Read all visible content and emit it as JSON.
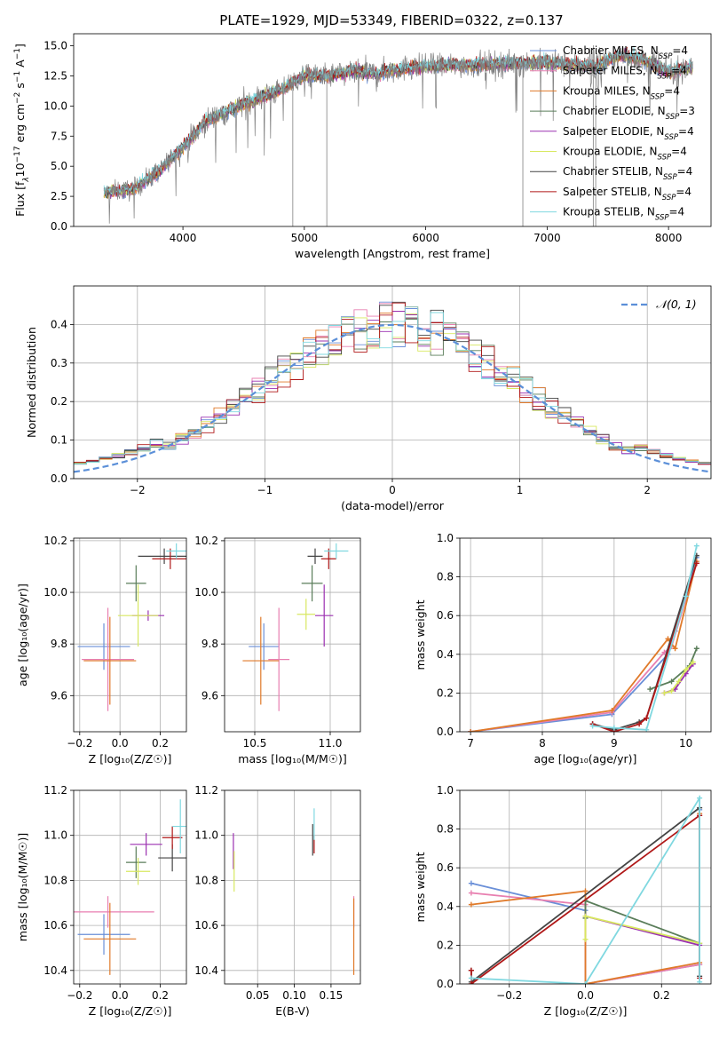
{
  "figure": {
    "title": "PLATE=1929, MJD=53349, FIBERID=0322, z=0.137"
  },
  "colors": {
    "Chabrier MILES": "#6a8fd8",
    "Salpeter MILES": "#e87fb0",
    "Kroupa MILES": "#e07a2a",
    "Chabrier ELODIE": "#5a7d5a",
    "Salpeter ELODIE": "#9b30b0",
    "Kroupa ELODIE": "#d8e860",
    "Chabrier STELIB": "#444444",
    "Salpeter STELIB": "#b01818",
    "Kroupa STELIB": "#80d8e0",
    "data": "#808080",
    "normal": "#5b8fd8",
    "grid": "#b0b0b0"
  },
  "chart_data": [
    {
      "id": "spectrum",
      "type": "line",
      "title": "PLATE=1929, MJD=53349, FIBERID=0322, z=0.137",
      "xlabel": "wavelength [Angstrom, rest frame]",
      "ylabel_parts": [
        "Flux [f",
        "λ",
        "10",
        "−17",
        " erg cm",
        "−2",
        " s",
        "−1",
        " A",
        "−1",
        "]"
      ],
      "xlim": [
        3100,
        8350
      ],
      "ylim": [
        0,
        16
      ],
      "xticks": [
        4000,
        5000,
        6000,
        7000,
        8000
      ],
      "xtick_labels": [
        "4000",
        "5000",
        "6000",
        "7000",
        "8000"
      ],
      "yticks": [
        0.0,
        2.5,
        5.0,
        7.5,
        10.0,
        12.5,
        15.0
      ],
      "ytick_labels": [
        "0.0",
        "2.5",
        "5.0",
        "7.5",
        "10.0",
        "12.5",
        "15.0"
      ],
      "grid": false,
      "legend_position": "right",
      "data_range": [
        3350,
        8200
      ],
      "continuum_x": [
        3350,
        3600,
        3800,
        4000,
        4200,
        4500,
        4800,
        5000,
        5200,
        5400,
        5600,
        5800,
        6000,
        6300,
        6600,
        7000,
        7400,
        7600,
        7800,
        8000,
        8200
      ],
      "continuum_y": [
        2.8,
        3.1,
        4.6,
        6.6,
        8.8,
        10.2,
        11.3,
        12.5,
        12.5,
        12.9,
        12.7,
        13.1,
        13.3,
        13.4,
        13.5,
        13.6,
        13.3,
        14.2,
        13.8,
        12.8,
        13.3
      ],
      "legend": [
        {
          "name": "Chabrier MILES",
          "n": "4"
        },
        {
          "name": "Salpeter MILES",
          "n": "4"
        },
        {
          "name": "Kroupa MILES",
          "n": "4"
        },
        {
          "name": "Chabrier ELODIE",
          "n": "3"
        },
        {
          "name": "Salpeter ELODIE",
          "n": "4"
        },
        {
          "name": "Kroupa ELODIE",
          "n": "4"
        },
        {
          "name": "Chabrier STELIB",
          "n": "4"
        },
        {
          "name": "Salpeter STELIB",
          "n": "4"
        },
        {
          "name": "Kroupa STELIB",
          "n": "4"
        }
      ],
      "legend_n_label": "N",
      "legend_n_sub": "SSP"
    },
    {
      "id": "residuals",
      "type": "line",
      "xlabel": "(data-model)/error",
      "ylabel": "Normed distribution",
      "xlim": [
        -2.5,
        2.5
      ],
      "ylim": [
        0,
        0.5
      ],
      "xticks": [
        -2,
        -1,
        0,
        1,
        2
      ],
      "xtick_labels": [
        "−2",
        "−1",
        "0",
        "1",
        "2"
      ],
      "yticks": [
        0.0,
        0.1,
        0.2,
        0.3,
        0.4
      ],
      "ytick_labels": [
        "0.0",
        "0.1",
        "0.2",
        "0.3",
        "0.4"
      ],
      "grid": true,
      "legend_position": "top-right",
      "legend_label": "𝒩(0, 1)",
      "bin_width": 0.1,
      "hist_start": -2.5
    },
    {
      "id": "z_age",
      "type": "scatter",
      "xlabel": "Z [log₁₀(Z/Z☉)]",
      "ylabel": "age  [log₁₀(age/yr)]",
      "xlim": [
        -0.23,
        0.33
      ],
      "ylim": [
        9.46,
        10.21
      ],
      "xticks": [
        -0.2,
        0.0,
        0.2
      ],
      "xtick_labels": [
        "−0.2",
        "0.0",
        "0.2"
      ],
      "yticks": [
        9.6,
        9.8,
        10.0,
        10.2
      ],
      "ytick_labels": [
        "9.6",
        "9.8",
        "10.0",
        "10.2"
      ],
      "grid": true,
      "points": [
        {
          "model": "Chabrier MILES",
          "x": -0.08,
          "y": 9.79,
          "xerr": 0.13,
          "yerr": 0.09
        },
        {
          "model": "Salpeter MILES",
          "x": -0.06,
          "y": 9.74,
          "xerr": 0.13,
          "yerr": 0.2
        },
        {
          "model": "Kroupa MILES",
          "x": -0.05,
          "y": 9.735,
          "xerr": 0.13,
          "yerr": 0.17
        },
        {
          "model": "Chabrier ELODIE",
          "x": 0.08,
          "y": 10.035,
          "xerr": 0.05,
          "yerr": 0.07
        },
        {
          "model": "Salpeter ELODIE",
          "x": 0.14,
          "y": 9.91,
          "xerr": 0.08,
          "yerr": 0.02
        },
        {
          "model": "Kroupa ELODIE",
          "x": 0.09,
          "y": 9.91,
          "xerr": 0.1,
          "yerr": 0.12
        },
        {
          "model": "Chabrier STELIB",
          "x": 0.22,
          "y": 10.14,
          "xerr": 0.13,
          "yerr": 0.03
        },
        {
          "model": "Salpeter STELIB",
          "x": 0.25,
          "y": 10.13,
          "xerr": 0.09,
          "yerr": 0.04
        },
        {
          "model": "Kroupa STELIB",
          "x": 0.28,
          "y": 10.16,
          "xerr": 0.05,
          "yerr": 0.03
        }
      ]
    },
    {
      "id": "mass_age",
      "type": "scatter",
      "xlabel": "mass [log₁₀(M/M☉)]",
      "ylabel": "",
      "xlim": [
        10.3,
        11.2
      ],
      "ylim": [
        9.46,
        10.21
      ],
      "xticks": [
        10.5,
        11.0
      ],
      "xtick_labels": [
        "10.5",
        "11.0"
      ],
      "yticks": [
        9.6,
        9.8,
        10.0,
        10.2
      ],
      "ytick_labels": [
        "9.6",
        "9.8",
        "10.0",
        "10.2"
      ],
      "grid": true,
      "points": [
        {
          "model": "Chabrier MILES",
          "x": 10.56,
          "y": 9.79,
          "xerr": 0.1,
          "yerr": 0.09
        },
        {
          "model": "Salpeter MILES",
          "x": 10.66,
          "y": 9.74,
          "xerr": 0.07,
          "yerr": 0.2
        },
        {
          "model": "Kroupa MILES",
          "x": 10.54,
          "y": 9.735,
          "xerr": 0.12,
          "yerr": 0.17
        },
        {
          "model": "Chabrier ELODIE",
          "x": 10.88,
          "y": 10.035,
          "xerr": 0.07,
          "yerr": 0.07
        },
        {
          "model": "Salpeter ELODIE",
          "x": 10.96,
          "y": 9.91,
          "xerr": 0.06,
          "yerr": 0.12
        },
        {
          "model": "Kroupa ELODIE",
          "x": 10.84,
          "y": 9.915,
          "xerr": 0.06,
          "yerr": 0.06
        },
        {
          "model": "Chabrier STELIB",
          "x": 10.9,
          "y": 10.14,
          "xerr": 0.05,
          "yerr": 0.03
        },
        {
          "model": "Salpeter STELIB",
          "x": 10.99,
          "y": 10.13,
          "xerr": 0.05,
          "yerr": 0.04
        },
        {
          "model": "Kroupa STELIB",
          "x": 11.04,
          "y": 10.16,
          "xerr": 0.08,
          "yerr": 0.03
        }
      ]
    },
    {
      "id": "age_weight",
      "type": "line",
      "xlabel": "age  [log₁₀(age/yr)]",
      "ylabel": "mass weight",
      "xlim": [
        6.85,
        10.35
      ],
      "ylim": [
        0,
        1.0
      ],
      "xticks": [
        7,
        8,
        9,
        10
      ],
      "xtick_labels": [
        "7",
        "8",
        "9",
        "10"
      ],
      "yticks": [
        0.0,
        0.2,
        0.4,
        0.6,
        0.8,
        1.0
      ],
      "ytick_labels": [
        "0.0",
        "0.2",
        "0.4",
        "0.6",
        "0.8",
        "1.0"
      ],
      "grid": true,
      "series": [
        {
          "model": "Chabrier MILES",
          "x": [
            7.0,
            8.97,
            9.75,
            9.85,
            10.15
          ],
          "y": [
            0.0,
            0.09,
            0.4,
            0.52,
            0.9
          ]
        },
        {
          "model": "Salpeter MILES",
          "x": [
            7.0,
            8.97,
            9.7,
            9.8,
            10.15
          ],
          "y": [
            0.0,
            0.1,
            0.41,
            0.44,
            0.87
          ]
        },
        {
          "model": "Kroupa MILES",
          "x": [
            7.0,
            8.97,
            9.75,
            9.85,
            10.15
          ],
          "y": [
            0.0,
            0.11,
            0.48,
            0.43,
            0.88
          ]
        },
        {
          "model": "Chabrier ELODIE",
          "x": [
            9.5,
            9.8,
            10.05,
            10.15
          ],
          "y": [
            0.22,
            0.26,
            0.34,
            0.43
          ]
        },
        {
          "model": "Salpeter ELODIE",
          "x": [
            9.7,
            9.85,
            10.0,
            10.1
          ],
          "y": [
            0.2,
            0.22,
            0.3,
            0.35
          ]
        },
        {
          "model": "Kroupa ELODIE",
          "x": [
            9.7,
            9.8,
            9.9,
            10.0,
            10.1
          ],
          "y": [
            0.2,
            0.21,
            0.26,
            0.32,
            0.36
          ]
        },
        {
          "model": "Chabrier STELIB",
          "x": [
            8.7,
            9.0,
            9.35,
            9.45,
            10.15
          ],
          "y": [
            0.04,
            0.01,
            0.05,
            0.07,
            0.91
          ]
        },
        {
          "model": "Salpeter STELIB",
          "x": [
            8.7,
            9.0,
            9.35,
            9.45,
            10.15
          ],
          "y": [
            0.04,
            0.0,
            0.04,
            0.07,
            0.87
          ]
        },
        {
          "model": "Kroupa STELIB",
          "x": [
            8.7,
            9.0,
            9.45,
            10.0,
            10.15
          ],
          "y": [
            0.03,
            0.02,
            0.01,
            0.7,
            0.96
          ]
        }
      ]
    },
    {
      "id": "z_mass",
      "type": "scatter",
      "xlabel": "Z [log₁₀(Z/Z☉)]",
      "ylabel": "mass [log₁₀(M/M☉)]",
      "xlim": [
        -0.23,
        0.33
      ],
      "ylim": [
        10.34,
        11.2
      ],
      "xticks": [
        -0.2,
        0.0,
        0.2
      ],
      "xtick_labels": [
        "−0.2",
        "0.0",
        "0.2"
      ],
      "yticks": [
        10.4,
        10.6,
        10.8,
        11.0,
        11.2
      ],
      "ytick_labels": [
        "10.4",
        "10.6",
        "10.8",
        "11.0",
        "11.2"
      ],
      "grid": true,
      "points": [
        {
          "model": "Chabrier MILES",
          "x": -0.08,
          "y": 10.56,
          "xerr": 0.13,
          "yerr": 0.09
        },
        {
          "model": "Salpeter MILES",
          "x": -0.06,
          "y": 10.66,
          "xerr": 0.23,
          "yerr": 0.07
        },
        {
          "model": "Kroupa MILES",
          "x": -0.05,
          "y": 10.54,
          "xerr": 0.13,
          "yerr": 0.16
        },
        {
          "model": "Chabrier ELODIE",
          "x": 0.08,
          "y": 10.88,
          "xerr": 0.05,
          "yerr": 0.07
        },
        {
          "model": "Salpeter ELODIE",
          "x": 0.13,
          "y": 10.96,
          "xerr": 0.08,
          "yerr": 0.05
        },
        {
          "model": "Kroupa ELODIE",
          "x": 0.09,
          "y": 10.84,
          "xerr": 0.06,
          "yerr": 0.06
        },
        {
          "model": "Chabrier STELIB",
          "x": 0.26,
          "y": 10.9,
          "xerr": 0.07,
          "yerr": 0.06
        },
        {
          "model": "Salpeter STELIB",
          "x": 0.26,
          "y": 10.99,
          "xerr": 0.05,
          "yerr": 0.05
        },
        {
          "model": "Kroupa STELIB",
          "x": 0.3,
          "y": 11.04,
          "xerr": 0.04,
          "yerr": 0.12
        }
      ]
    },
    {
      "id": "ebv_mass",
      "type": "scatter",
      "xlabel": "E(B-V)",
      "ylabel": "",
      "xlim": [
        0.005,
        0.19
      ],
      "ylim": [
        10.34,
        11.2
      ],
      "xticks": [
        0.05,
        0.1,
        0.15
      ],
      "xtick_labels": [
        "0.05",
        "0.10",
        "0.15"
      ],
      "yticks": [
        10.4,
        10.6,
        10.8,
        11.0,
        11.2
      ],
      "ytick_labels": [
        "10.4",
        "10.6",
        "10.8",
        "11.0",
        "11.2"
      ],
      "grid": true,
      "points": [
        {
          "model": "Salpeter ELODIE",
          "x": 0.017,
          "y": 10.93,
          "xerr": 0.0,
          "yerr": 0.08
        },
        {
          "model": "Kroupa ELODIE",
          "x": 0.018,
          "y": 10.84,
          "xerr": 0.0,
          "yerr": 0.09
        },
        {
          "model": "Chabrier STELIB",
          "x": 0.125,
          "y": 10.98,
          "xerr": 0.0,
          "yerr": 0.07
        },
        {
          "model": "Salpeter STELIB",
          "x": 0.127,
          "y": 10.96,
          "xerr": 0.0,
          "yerr": 0.04
        },
        {
          "model": "Kroupa STELIB",
          "x": 0.127,
          "y": 11.05,
          "xerr": 0.0,
          "yerr": 0.07
        },
        {
          "model": "Salpeter MILES",
          "x": 0.181,
          "y": 10.66,
          "xerr": 0.0,
          "yerr": 0.07
        },
        {
          "model": "Kroupa MILES",
          "x": 0.181,
          "y": 10.55,
          "xerr": 0.0,
          "yerr": 0.17
        }
      ]
    },
    {
      "id": "z_weight",
      "type": "line",
      "xlabel": "Z [log₁₀(Z/Z☉)]",
      "ylabel": "mass weight",
      "xlim": [
        -0.33,
        0.33
      ],
      "ylim": [
        0,
        1.0
      ],
      "xticks": [
        -0.2,
        0.0,
        0.2
      ],
      "xtick_labels": [
        "−0.2",
        "0.0",
        "0.2"
      ],
      "yticks": [
        0.0,
        0.2,
        0.4,
        0.6,
        0.8,
        1.0
      ],
      "ytick_labels": [
        "0.0",
        "0.2",
        "0.4",
        "0.6",
        "0.8",
        "1.0"
      ],
      "grid": true,
      "series": [
        {
          "model": "Chabrier MILES",
          "x": [
            -0.3,
            0.0,
            0.0,
            0.3,
            0.3
          ],
          "y": [
            0.52,
            0.38,
            0.0,
            0.1,
            0.9
          ]
        },
        {
          "model": "Salpeter MILES",
          "x": [
            -0.3,
            0.0,
            0.0,
            0.3,
            0.3
          ],
          "y": [
            0.47,
            0.41,
            0.0,
            0.1,
            0.87
          ]
        },
        {
          "model": "Kroupa MILES",
          "x": [
            -0.3,
            0.0,
            0.0,
            0.3,
            0.3
          ],
          "y": [
            0.41,
            0.48,
            0.0,
            0.11,
            0.88
          ]
        },
        {
          "model": "Chabrier ELODIE",
          "x": [
            0.0,
            0.0,
            0.3
          ],
          "y": [
            0.34,
            0.43,
            0.21
          ]
        },
        {
          "model": "Salpeter ELODIE",
          "x": [
            0.0,
            0.3
          ],
          "y": [
            0.35,
            0.2
          ]
        },
        {
          "model": "Kroupa ELODIE",
          "x": [
            0.0,
            0.0,
            0.3
          ],
          "y": [
            0.23,
            0.35,
            0.21
          ]
        },
        {
          "model": "Chabrier STELIB",
          "x": [
            -0.3,
            -0.3,
            0.3,
            0.3
          ],
          "y": [
            0.07,
            0.01,
            0.91,
            0.04
          ]
        },
        {
          "model": "Salpeter STELIB",
          "x": [
            -0.3,
            -0.3,
            0.3,
            0.3
          ],
          "y": [
            0.07,
            0.0,
            0.87,
            0.03
          ]
        },
        {
          "model": "Kroupa STELIB",
          "x": [
            -0.3,
            0.0,
            0.3,
            0.3
          ],
          "y": [
            0.03,
            0.0,
            0.96,
            0.01
          ]
        }
      ]
    }
  ]
}
